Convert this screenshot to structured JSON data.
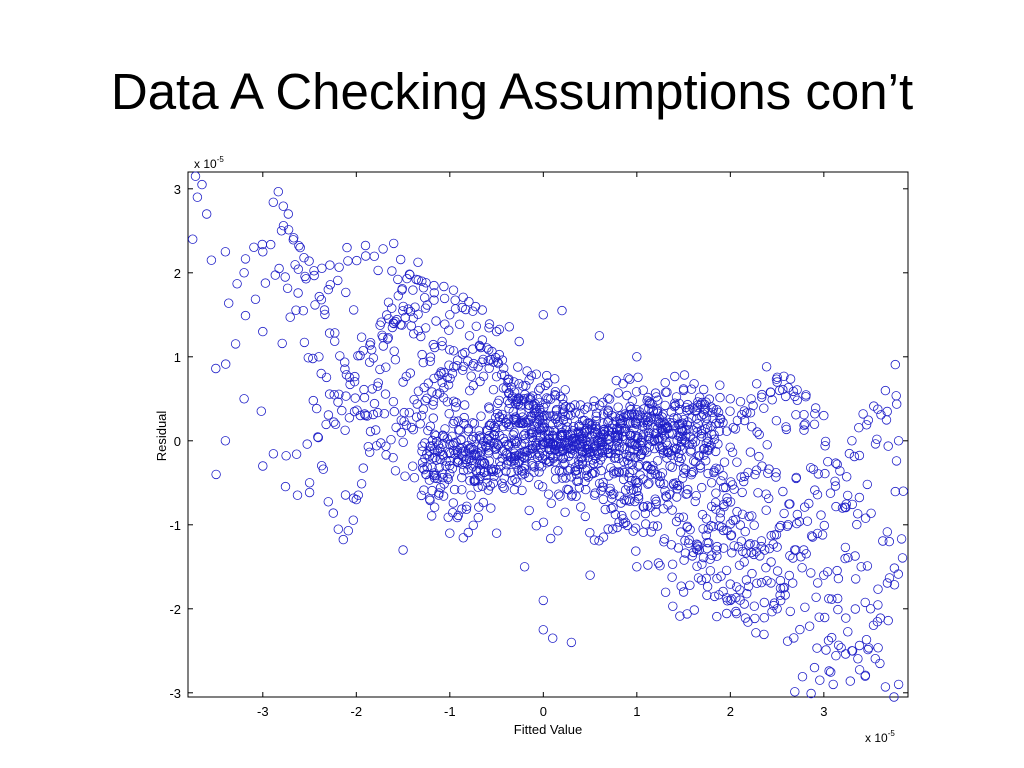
{
  "slide": {
    "title": "Data A Checking Assumptions con’t"
  },
  "colors": {
    "marker": "#1f1fc8",
    "axis": "#000000",
    "background": "#ffffff"
  },
  "chart_data": {
    "type": "scatter",
    "title": "",
    "xlabel": "Fitted Value",
    "ylabel": "Residual",
    "x_scale_label": {
      "base": "x 10",
      "exp": "-5"
    },
    "y_scale_label": {
      "base": "x 10",
      "exp": "-5"
    },
    "xlim": [
      -3.8,
      3.9
    ],
    "ylim": [
      -3.05,
      3.2
    ],
    "xticks": [
      -3,
      -2,
      -1,
      0,
      1,
      2,
      3
    ],
    "yticks": [
      -3,
      -2,
      -1,
      0,
      1,
      2,
      3
    ],
    "xtick_labels": [
      "-3",
      "-2",
      "-1",
      "0",
      "1",
      "2",
      "3"
    ],
    "ytick_labels": [
      "-3",
      "-2",
      "-1",
      "0",
      "1",
      "2",
      "3"
    ],
    "marker": "open-circle",
    "grid": false,
    "legend": "none",
    "point_generation": {
      "note": "Dense band of residuals trending downward from upper-left to lower-right; data recorded as trend parameters plus sampled points.",
      "n_points": 1500,
      "x_range": [
        -3.75,
        3.85
      ],
      "trend_slope": -0.42,
      "core_center": [
        0.3,
        0.0
      ],
      "core_width": 0.5
    },
    "points_sample": [
      [
        -3.72,
        3.15
      ],
      [
        -3.65,
        3.05
      ],
      [
        -3.7,
        2.9
      ],
      [
        -3.75,
        2.4
      ],
      [
        -3.6,
        2.7
      ],
      [
        -3.55,
        2.15
      ],
      [
        -3.4,
        2.25
      ],
      [
        -3.2,
        2.0
      ],
      [
        -3.0,
        2.25
      ],
      [
        -2.8,
        2.5
      ],
      [
        -2.6,
        2.3
      ],
      [
        -2.3,
        1.8
      ],
      [
        -2.1,
        2.3
      ],
      [
        -1.9,
        2.2
      ],
      [
        -1.6,
        2.35
      ],
      [
        -1.3,
        1.9
      ],
      [
        -1.0,
        1.5
      ],
      [
        -0.5,
        1.3
      ],
      [
        0.0,
        1.5
      ],
      [
        0.2,
        1.55
      ],
      [
        0.6,
        1.25
      ],
      [
        1.0,
        1.0
      ],
      [
        1.5,
        0.6
      ],
      [
        2.0,
        0.5
      ],
      [
        2.5,
        0.7
      ],
      [
        3.0,
        0.3
      ],
      [
        3.3,
        0.0
      ],
      [
        3.8,
        0.0
      ],
      [
        3.85,
        -0.6
      ],
      [
        3.7,
        -1.2
      ],
      [
        3.5,
        -2.0
      ],
      [
        3.3,
        -2.5
      ],
      [
        3.1,
        -2.9
      ],
      [
        3.6,
        -2.65
      ],
      [
        3.75,
        -3.05
      ],
      [
        3.8,
        -2.9
      ],
      [
        2.9,
        -2.7
      ],
      [
        2.5,
        -2.0
      ],
      [
        2.0,
        -1.9
      ],
      [
        1.5,
        -1.8
      ],
      [
        1.0,
        -1.5
      ],
      [
        0.5,
        -1.6
      ],
      [
        0.0,
        -1.9
      ],
      [
        -0.2,
        -1.5
      ],
      [
        0.1,
        -2.35
      ],
      [
        0.3,
        -2.4
      ],
      [
        0.0,
        -2.25
      ],
      [
        -0.5,
        -1.1
      ],
      [
        -1.0,
        -1.1
      ],
      [
        -1.5,
        -1.3
      ],
      [
        -2.0,
        -0.7
      ],
      [
        -2.5,
        -0.5
      ],
      [
        -3.0,
        -0.3
      ],
      [
        -3.4,
        0.0
      ],
      [
        -3.5,
        -0.4
      ],
      [
        -3.2,
        0.5
      ],
      [
        -3.0,
        1.3
      ],
      [
        -2.4,
        1.0
      ],
      [
        -1.5,
        0.7
      ],
      [
        -0.6,
        -0.5
      ],
      [
        0.2,
        0.1
      ],
      [
        0.8,
        0.4
      ],
      [
        1.3,
        0.2
      ],
      [
        1.8,
        -0.5
      ],
      [
        2.2,
        -0.9
      ],
      [
        2.7,
        -1.3
      ],
      [
        3.0,
        -1.6
      ],
      [
        3.2,
        -0.8
      ],
      [
        3.4,
        -1.5
      ],
      [
        2.8,
        0.2
      ]
    ]
  }
}
